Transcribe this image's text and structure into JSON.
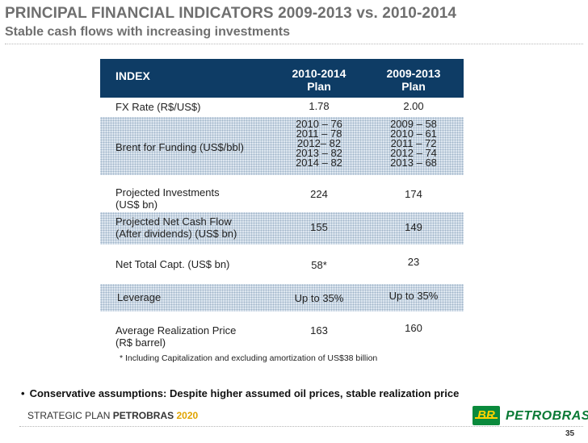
{
  "slide": {
    "title": "PRINCIPAL FINANCIAL INDICATORS 2009-2013 vs. 2010-2014",
    "subtitle": "Stable cash flows with increasing investments",
    "page_number": "35"
  },
  "table": {
    "header": {
      "col1": "INDEX",
      "col2_line1": "2010-2014",
      "col2_line2": "Plan",
      "col3_line1": "2009-2013",
      "col3_line2": "Plan"
    },
    "rows": [
      {
        "label": "FX Rate (R$/US$)",
        "plan_2010_2014": "1.78",
        "plan_2009_2013": "2.00"
      },
      {
        "label": "Brent for Funding (US$/bbl)",
        "plan_2010_2014": [
          "2010 – 76",
          "2011 – 78",
          "2012–  82",
          "2013 – 82",
          "2014 – 82"
        ],
        "plan_2009_2013": [
          "2009 – 58",
          "2010 – 61",
          "2011 – 72",
          "2012 – 74",
          "2013 – 68"
        ]
      },
      {
        "label_line1": "Projected Investments",
        "label_line2": "(US$ bn)",
        "plan_2010_2014": "224",
        "plan_2009_2013": "174"
      },
      {
        "label_line1": "Projected Net Cash Flow",
        "label_line2": "(After dividends) (US$ bn)",
        "plan_2010_2014": "155",
        "plan_2009_2013": "149"
      },
      {
        "label": "Net Total Capt. (US$ bn)",
        "plan_2010_2014": "58*",
        "plan_2009_2013": "23"
      },
      {
        "label": "Leverage",
        "plan_2010_2014": "Up to 35%",
        "plan_2009_2013": "Up to 35%"
      },
      {
        "label_line1": "Average Realization Price",
        "label_line2": "(R$ barrel)",
        "plan_2010_2014": "163",
        "plan_2009_2013": "160"
      }
    ],
    "footnote": "* Including Capitalization and excluding amortization of US$38 billion"
  },
  "bullet": {
    "marker": "•",
    "text": "Conservative assumptions: Despite higher assumed oil prices, stable realization price"
  },
  "footer": {
    "prefix": "STRATEGIC PLAN ",
    "company": "PETROBRAS",
    "year": "2020",
    "logo_mark": "BR",
    "logo_text": "PETROBRAS"
  },
  "colors": {
    "header_bg": "#0e3c65",
    "row_pattern": "#dde6ef",
    "logo_green": "#0a8a3c",
    "logo_yellow": "#ffd200"
  }
}
